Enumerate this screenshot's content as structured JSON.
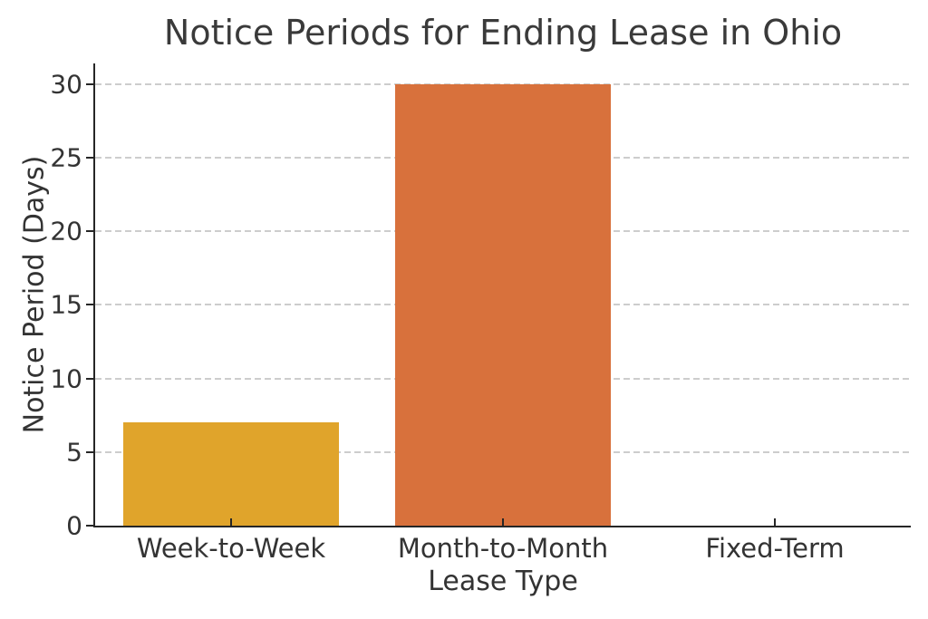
{
  "chart_data": {
    "type": "bar",
    "title": "Notice Periods for Ending Lease in Ohio",
    "xlabel": "Lease Type",
    "ylabel": "Notice Period (Days)",
    "categories": [
      "Week-to-Week",
      "Month-to-Month",
      "Fixed-Term"
    ],
    "values": [
      7,
      30,
      0
    ],
    "bar_colors": [
      "#E0A42B",
      "#D8713C",
      null
    ],
    "yticks": [
      0,
      5,
      10,
      15,
      20,
      25,
      30
    ],
    "ylim": [
      0,
      31.4
    ],
    "grid": {
      "axis": "y",
      "style": "dashed",
      "color": "#cdcdcd"
    },
    "legend": "none",
    "background": "#ffffff",
    "text_color": "#333333",
    "axis_color": "#262626"
  }
}
